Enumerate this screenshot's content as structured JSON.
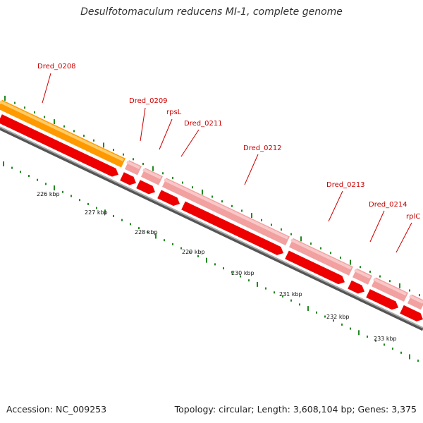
{
  "title": "Desulfotomaculum reducens MI-1, complete genome",
  "footer": {
    "accession": "Accession: NC_009253",
    "topology": "Topology: circular; Length: 3,608,104 bp; Genes: 3,375"
  },
  "colors": {
    "background": "#ffffff",
    "cds_forward": "#ee0000",
    "gene_light": "#f2a0a0",
    "rna_orange": "#ff9900",
    "backbone": "#888888",
    "tick": "#228822",
    "label": "#cc0000"
  },
  "scale_ticks": [
    {
      "label": "226 kbp"
    },
    {
      "label": "227 kbp"
    },
    {
      "label": "228 kbp"
    },
    {
      "label": "229 kbp"
    },
    {
      "label": "230 kbp"
    },
    {
      "label": "231 kbp"
    },
    {
      "label": "232 kbp"
    },
    {
      "label": "233 kbp"
    }
  ],
  "genes": [
    {
      "label": "Dred_0208"
    },
    {
      "label": "Dred_0209"
    },
    {
      "label": "rpsL"
    },
    {
      "label": "Dred_0211"
    },
    {
      "label": "Dred_0212"
    },
    {
      "label": "Dred_0213"
    },
    {
      "label": "Dred_0214"
    },
    {
      "label": "rplC"
    }
  ]
}
